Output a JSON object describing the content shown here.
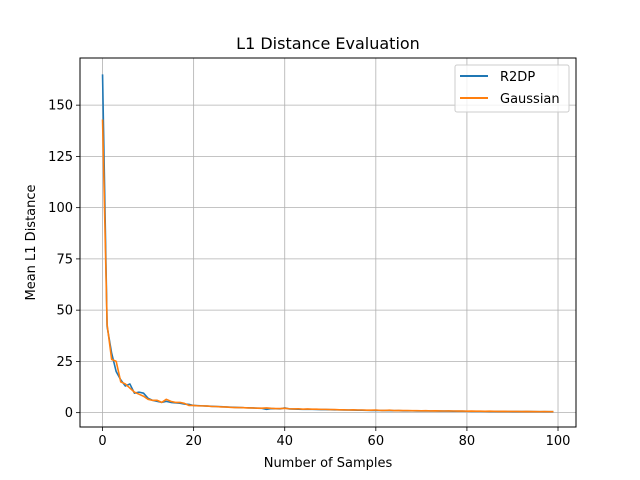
{
  "chart_data": {
    "type": "line",
    "title": "L1 Distance Evaluation",
    "xlabel": "Number of Samples",
    "ylabel": "Mean L1 Distance",
    "xlim": [
      -4.95,
      103.95
    ],
    "ylim": [
      -7.0,
      173.0
    ],
    "xticks": [
      0,
      20,
      40,
      60,
      80,
      100
    ],
    "yticks": [
      0,
      25,
      50,
      75,
      100,
      125,
      150
    ],
    "grid": true,
    "legend_position": "top-right",
    "x": [
      0,
      1,
      2,
      3,
      4,
      5,
      6,
      7,
      8,
      9,
      10,
      11,
      12,
      13,
      14,
      15,
      16,
      17,
      18,
      19,
      20,
      21,
      22,
      23,
      24,
      25,
      26,
      27,
      28,
      29,
      30,
      31,
      32,
      33,
      34,
      35,
      36,
      37,
      38,
      39,
      40,
      41,
      42,
      43,
      44,
      45,
      46,
      47,
      48,
      49,
      50,
      51,
      52,
      53,
      54,
      55,
      56,
      57,
      58,
      59,
      60,
      61,
      62,
      63,
      64,
      65,
      66,
      67,
      68,
      69,
      70,
      71,
      72,
      73,
      74,
      75,
      76,
      77,
      78,
      79,
      80,
      81,
      82,
      83,
      84,
      85,
      86,
      87,
      88,
      89,
      90,
      91,
      92,
      93,
      94,
      95,
      96,
      97,
      98,
      99
    ],
    "series": [
      {
        "name": "R2DP",
        "color": "#1f77b4",
        "values": [
          165,
          42,
          29,
          20,
          16,
          13,
          14,
          9.5,
          10,
          9.5,
          7,
          6,
          5.5,
          5,
          5.5,
          5,
          4.8,
          4.6,
          4.2,
          4,
          3.5,
          3.4,
          3.3,
          3.2,
          3.1,
          3,
          2.9,
          2.8,
          2.7,
          2.6,
          2.5,
          2.4,
          2.35,
          2.3,
          2.2,
          2.1,
          1.6,
          2.0,
          1.9,
          1.85,
          2.3,
          1.8,
          1.75,
          1.7,
          1.6,
          1.65,
          1.6,
          1.55,
          1.5,
          1.5,
          1.45,
          1.4,
          1.35,
          1.3,
          1.3,
          1.25,
          1.2,
          1.2,
          1.15,
          1.1,
          1.1,
          1.05,
          1.0,
          1.0,
          0.95,
          0.95,
          0.9,
          0.9,
          0.88,
          0.85,
          0.85,
          0.82,
          0.8,
          0.8,
          0.78,
          0.75,
          0.75,
          0.72,
          0.7,
          0.7,
          0.68,
          0.66,
          0.65,
          0.64,
          0.62,
          0.6,
          0.6,
          0.58,
          0.57,
          0.56,
          0.55,
          0.54,
          0.53,
          0.52,
          0.51,
          0.5,
          0.5,
          0.49,
          0.48,
          0.47
        ]
      },
      {
        "name": "Gaussian",
        "color": "#ff7f0e",
        "values": [
          143,
          43,
          26,
          25,
          15,
          14,
          12,
          10,
          9,
          8,
          6.5,
          6,
          6,
          5,
          6.5,
          5.5,
          5,
          5,
          4.5,
          3.5,
          3.5,
          3.3,
          3.3,
          3.2,
          3.0,
          3.0,
          2.8,
          2.8,
          2.6,
          2.5,
          2.5,
          2.4,
          2.3,
          2.3,
          2.2,
          2.2,
          2.3,
          2.1,
          2.0,
          2.0,
          2.1,
          1.9,
          1.8,
          1.9,
          1.7,
          1.8,
          1.7,
          1.7,
          1.6,
          1.6,
          1.5,
          1.5,
          1.4,
          1.4,
          1.3,
          1.4,
          1.3,
          1.3,
          1.2,
          1.2,
          1.3,
          1.1,
          1.1,
          1.2,
          1.0,
          1.1,
          1.0,
          1.0,
          0.95,
          0.95,
          0.9,
          0.95,
          0.85,
          0.9,
          0.85,
          0.8,
          0.85,
          0.8,
          0.75,
          0.8,
          0.7,
          0.75,
          0.7,
          0.7,
          0.65,
          0.7,
          0.65,
          0.6,
          0.65,
          0.6,
          0.6,
          0.6,
          0.55,
          0.6,
          0.55,
          0.55,
          0.5,
          0.55,
          0.5,
          0.5
        ]
      }
    ]
  }
}
